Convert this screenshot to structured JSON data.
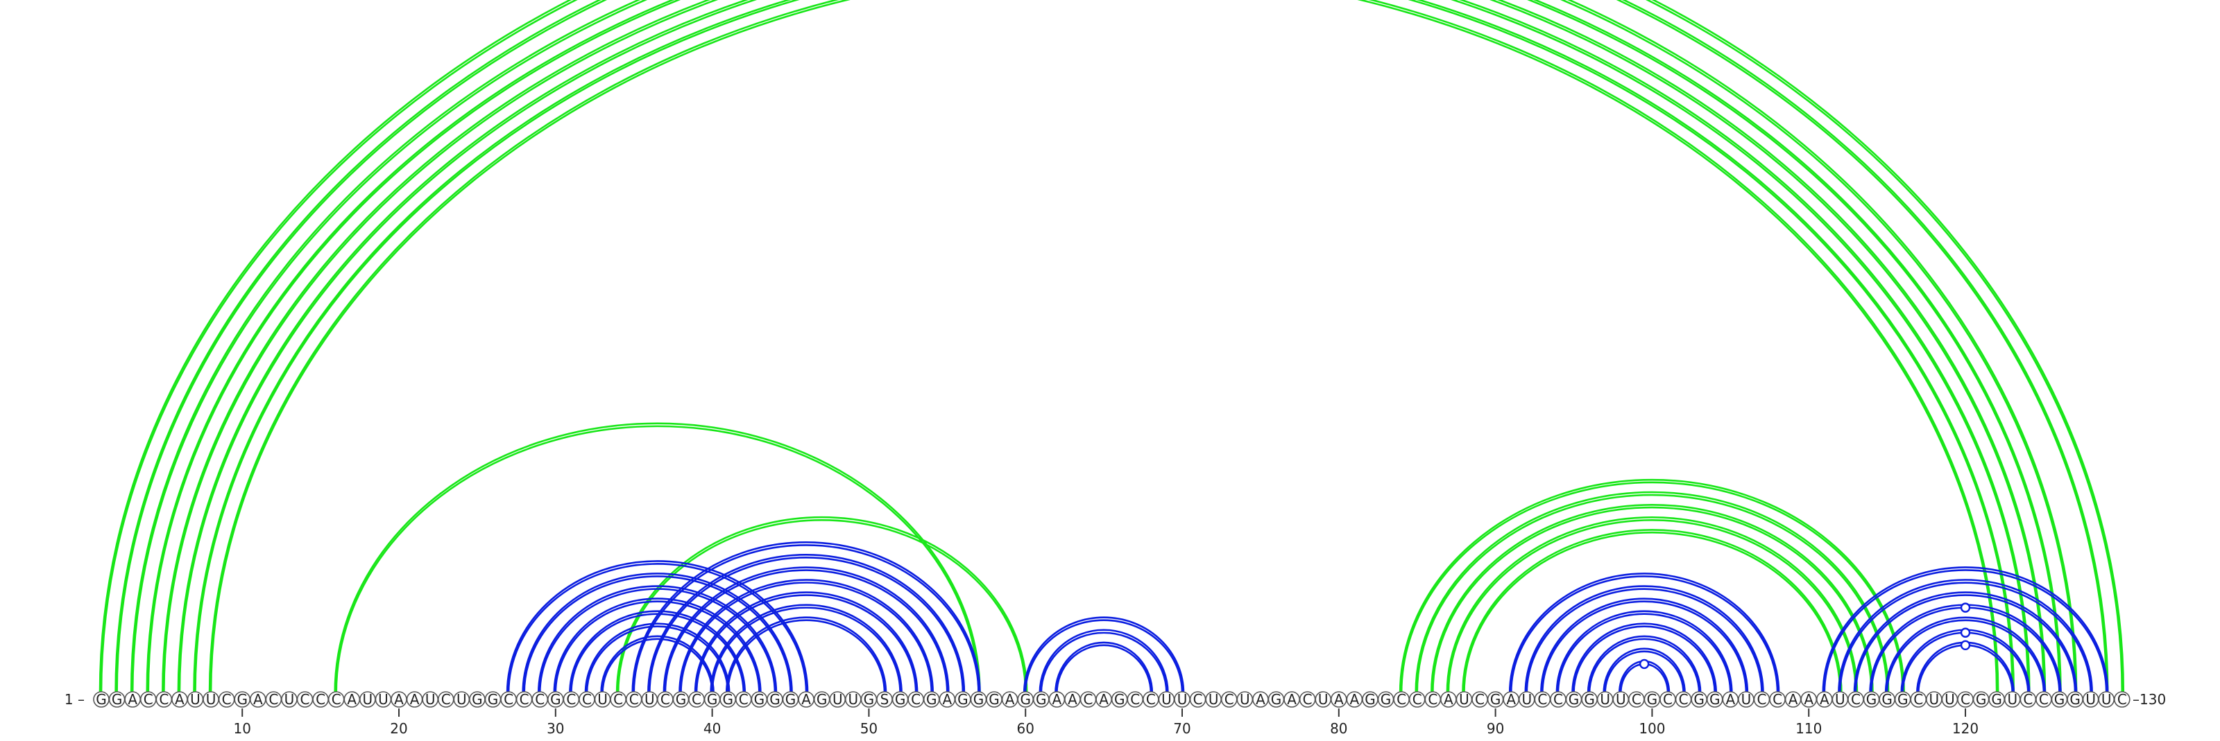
{
  "sequence": "GGACCAUUCGACUCCCAUUAAUCUGGCCCGCCUCCUCGCGGCGGGAGUUGSGCGAGGGAGGAACAGCCUUCUCUAGACUAAGGCCCAUCGAUCCGGUUCGCCGGAUCCAAAUCGGGCUUCGGUCCGGUUC",
  "start_label": "1 –",
  "end_label": "–130",
  "ticks": [
    10,
    20,
    30,
    40,
    50,
    60,
    70,
    80,
    90,
    100,
    110,
    120
  ],
  "colors": {
    "blue": "#0b1ee0",
    "green": "#19e619"
  },
  "arcs": [
    {
      "i": 1,
      "j": 130,
      "color": "green"
    },
    {
      "i": 2,
      "j": 129,
      "color": "green"
    },
    {
      "i": 3,
      "j": 127,
      "color": "green"
    },
    {
      "i": 4,
      "j": 126,
      "color": "green"
    },
    {
      "i": 5,
      "j": 125,
      "color": "green"
    },
    {
      "i": 6,
      "j": 124,
      "color": "green"
    },
    {
      "i": 7,
      "j": 123,
      "color": "green"
    },
    {
      "i": 8,
      "j": 122,
      "color": "green"
    },
    {
      "i": 16,
      "j": 57,
      "color": "green"
    },
    {
      "i": 34,
      "j": 60,
      "color": "green"
    },
    {
      "i": 84,
      "j": 116,
      "color": "green"
    },
    {
      "i": 85,
      "j": 115,
      "color": "green"
    },
    {
      "i": 86,
      "j": 114,
      "color": "green"
    },
    {
      "i": 87,
      "j": 113,
      "color": "green"
    },
    {
      "i": 88,
      "j": 112,
      "color": "green"
    },
    {
      "i": 27,
      "j": 46,
      "color": "blue"
    },
    {
      "i": 28,
      "j": 45,
      "color": "blue"
    },
    {
      "i": 29,
      "j": 44,
      "color": "blue"
    },
    {
      "i": 30,
      "j": 43,
      "color": "blue"
    },
    {
      "i": 31,
      "j": 42,
      "color": "blue"
    },
    {
      "i": 32,
      "j": 41,
      "color": "blue"
    },
    {
      "i": 33,
      "j": 40,
      "color": "blue"
    },
    {
      "i": 35,
      "j": 57,
      "color": "blue"
    },
    {
      "i": 36,
      "j": 56,
      "color": "blue"
    },
    {
      "i": 37,
      "j": 55,
      "color": "blue"
    },
    {
      "i": 38,
      "j": 54,
      "color": "blue"
    },
    {
      "i": 39,
      "j": 53,
      "color": "blue"
    },
    {
      "i": 40,
      "j": 52,
      "color": "blue"
    },
    {
      "i": 41,
      "j": 51,
      "color": "blue"
    },
    {
      "i": 60,
      "j": 70,
      "color": "blue"
    },
    {
      "i": 61,
      "j": 69,
      "color": "blue"
    },
    {
      "i": 62,
      "j": 68,
      "color": "blue"
    },
    {
      "i": 91,
      "j": 108,
      "color": "blue"
    },
    {
      "i": 92,
      "j": 107,
      "color": "blue"
    },
    {
      "i": 93,
      "j": 106,
      "color": "blue"
    },
    {
      "i": 94,
      "j": 105,
      "color": "blue"
    },
    {
      "i": 95,
      "j": 104,
      "color": "blue"
    },
    {
      "i": 96,
      "j": 103,
      "color": "blue"
    },
    {
      "i": 97,
      "j": 102,
      "color": "blue"
    },
    {
      "i": 98,
      "j": 101,
      "color": "blue"
    },
    {
      "i": 111,
      "j": 129,
      "color": "blue"
    },
    {
      "i": 112,
      "j": 128,
      "color": "blue"
    },
    {
      "i": 113,
      "j": 127,
      "color": "blue"
    },
    {
      "i": 114,
      "j": 126,
      "color": "blue"
    },
    {
      "i": 115,
      "j": 125,
      "color": "blue"
    },
    {
      "i": 116,
      "j": 124,
      "color": "blue"
    },
    {
      "i": 117,
      "j": 123,
      "color": "blue"
    }
  ]
}
